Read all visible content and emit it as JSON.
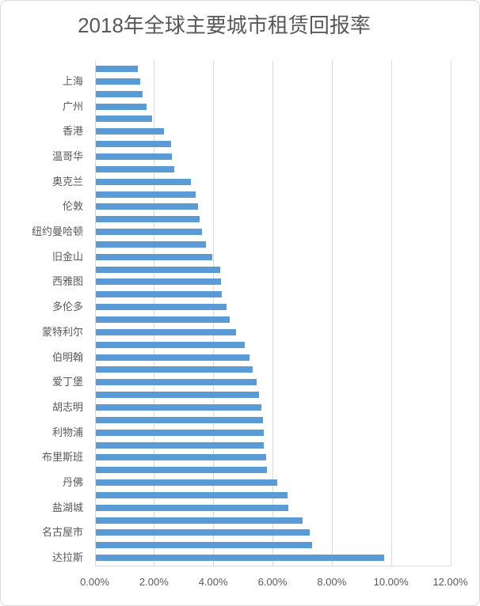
{
  "chart_data": {
    "type": "bar",
    "orientation": "horizontal",
    "title": "2018年全球主要城市租赁回报率",
    "xlabel": "",
    "ylabel": "",
    "xlim": [
      0,
      12
    ],
    "unit": "%",
    "grid": true,
    "legend": "none",
    "bar_color": "#5B9BD5",
    "text_color": "#595959",
    "gridline_color": "#D9D9D9",
    "background_color": "#FFFFFF",
    "x_tick_values": [
      0,
      2,
      4,
      6,
      8,
      10,
      12
    ],
    "x_tick_labels": [
      "0.00%",
      "2.00%",
      "4.00%",
      "6.00%",
      "8.00%",
      "10.00%",
      "12.00%"
    ],
    "note_label_interval": "category labels shown every 2nd bar",
    "bars": [
      {
        "label": "",
        "value": 1.42
      },
      {
        "label": "上海",
        "value": 1.5
      },
      {
        "label": "",
        "value": 1.58
      },
      {
        "label": "广州",
        "value": 1.72
      },
      {
        "label": "",
        "value": 1.92
      },
      {
        "label": "香港",
        "value": 2.3
      },
      {
        "label": "",
        "value": 2.54
      },
      {
        "label": "温哥华",
        "value": 2.57
      },
      {
        "label": "",
        "value": 2.67
      },
      {
        "label": "奥克兰",
        "value": 3.21
      },
      {
        "label": "",
        "value": 3.39
      },
      {
        "label": "伦敦",
        "value": 3.45
      },
      {
        "label": "",
        "value": 3.51
      },
      {
        "label": "纽约曼哈顿",
        "value": 3.6
      },
      {
        "label": "",
        "value": 3.73
      },
      {
        "label": "旧金山",
        "value": 3.94
      },
      {
        "label": "",
        "value": 4.2
      },
      {
        "label": "西雅图",
        "value": 4.23
      },
      {
        "label": "",
        "value": 4.26
      },
      {
        "label": "多伦多",
        "value": 4.41
      },
      {
        "label": "",
        "value": 4.54
      },
      {
        "label": "蒙特利尔",
        "value": 4.75
      },
      {
        "label": "",
        "value": 5.04
      },
      {
        "label": "伯明翰",
        "value": 5.19
      },
      {
        "label": "",
        "value": 5.3
      },
      {
        "label": "爱丁堡",
        "value": 5.43
      },
      {
        "label": "",
        "value": 5.52
      },
      {
        "label": "胡志明",
        "value": 5.59
      },
      {
        "label": "",
        "value": 5.64
      },
      {
        "label": "利物浦",
        "value": 5.69
      },
      {
        "label": "",
        "value": 5.69
      },
      {
        "label": "布里斯班",
        "value": 5.76
      },
      {
        "label": "",
        "value": 5.79
      },
      {
        "label": "丹佛",
        "value": 6.13
      },
      {
        "label": "",
        "value": 6.48
      },
      {
        "label": "盐湖城",
        "value": 6.51
      },
      {
        "label": "",
        "value": 6.98
      },
      {
        "label": "名古屋市",
        "value": 7.22
      },
      {
        "label": "",
        "value": 7.31
      },
      {
        "label": "达拉斯",
        "value": 9.75
      }
    ]
  }
}
